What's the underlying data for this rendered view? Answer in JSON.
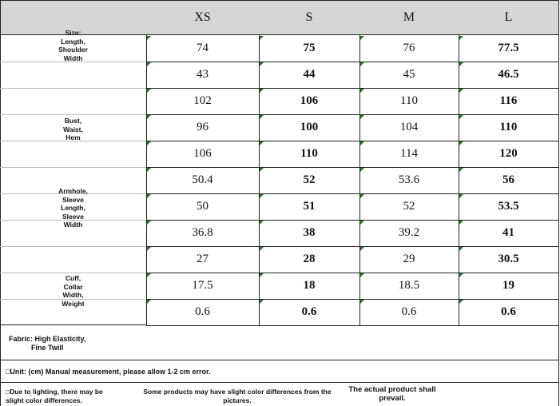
{
  "table": {
    "header": [
      "XS",
      "S",
      "M",
      "L"
    ],
    "rows": [
      [
        "74",
        "75",
        "76",
        "77.5"
      ],
      [
        "43",
        "44",
        "45",
        "46.5"
      ],
      [
        "102",
        "106",
        "110",
        "116"
      ],
      [
        "96",
        "100",
        "104",
        "110"
      ],
      [
        "106",
        "110",
        "114",
        "120"
      ],
      [
        "50.4",
        "52",
        "53.6",
        "56"
      ],
      [
        "50",
        "51",
        "52",
        "53.5"
      ],
      [
        "36.8",
        "38",
        "39.2",
        "41"
      ],
      [
        "27",
        "28",
        "29",
        "30.5"
      ],
      [
        "17.5",
        "18",
        "18.5",
        "19"
      ],
      [
        "0.6",
        "0.6",
        "0.6",
        "0.6"
      ]
    ],
    "side_labels": [
      [
        "Size:",
        "Length,",
        "Shoulder",
        "Width"
      ],
      [
        "Bust,",
        "Waist,",
        "Hem"
      ],
      [
        "Armhole,",
        "Sleeve",
        "Length,",
        "Sleeve",
        "Width"
      ],
      [
        "Cuff,",
        "Collar",
        "Width,",
        "Weight"
      ]
    ],
    "fabric": [
      "Fabric: High Elasticity,",
      "Fine Twill"
    ],
    "unit": "□Unit: (cm) Manual measurement, please allow 1-2 cm error.",
    "notes": [
      [
        "□Due to lighting, there may be",
        "slight color differences."
      ],
      [
        "Some products may have slight color differences from the",
        "pictures."
      ],
      [
        "The actual product shall",
        "prevail."
      ]
    ]
  }
}
